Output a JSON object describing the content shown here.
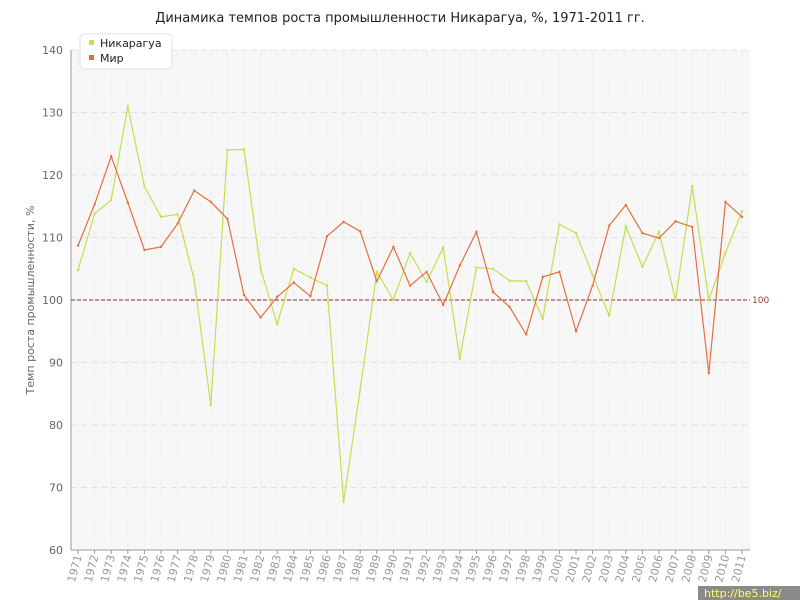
{
  "chart_data": {
    "type": "line",
    "title": "Динамика темпов роста промышленности Никарагуа, %, 1971-2011 гг.",
    "xlabel": "",
    "ylabel": "Темп роста промышленности, %",
    "ylim": [
      60,
      140
    ],
    "yticks": [
      60,
      70,
      80,
      90,
      100,
      110,
      120,
      130,
      140
    ],
    "x": [
      "1971",
      "1972",
      "1973",
      "1974",
      "1975",
      "1976",
      "1977",
      "1978",
      "1979",
      "1980",
      "1981",
      "1982",
      "1983",
      "1984",
      "1985",
      "1986",
      "1987",
      "1988",
      "1989",
      "1990",
      "1991",
      "1992",
      "1993",
      "1994",
      "1995",
      "1996",
      "1997",
      "1998",
      "1999",
      "2000",
      "2001",
      "2002",
      "2003",
      "2004",
      "2005",
      "2006",
      "2007",
      "2008",
      "2009",
      "2010",
      "2011"
    ],
    "series": [
      {
        "name": "Никарагуа",
        "color": "#c3df4f",
        "values": [
          104.8,
          113.8,
          116.0,
          131.0,
          118.2,
          113.3,
          113.7,
          103.2,
          83.2,
          124.0,
          124.1,
          105.0,
          96.2,
          105.0,
          103.6,
          102.3,
          67.7,
          85.7,
          104.5,
          100.0,
          107.5,
          102.9,
          108.4,
          90.6,
          105.2,
          105.0,
          103.1,
          103.0,
          97.0,
          112.1,
          110.7,
          104.0,
          97.5,
          111.8,
          105.3,
          110.9,
          100.0,
          118.2,
          100.0,
          107.5,
          114.2
        ]
      },
      {
        "name": "Мир",
        "color": "#e2703f",
        "values": [
          108.7,
          115.3,
          123.0,
          115.6,
          108.0,
          108.5,
          112.2,
          117.5,
          115.7,
          113.0,
          100.8,
          97.2,
          100.5,
          102.8,
          100.6,
          110.2,
          112.5,
          111.0,
          103.0,
          108.5,
          102.3,
          104.5,
          99.2,
          105.5,
          110.9,
          101.3,
          98.9,
          94.5,
          103.7,
          104.5,
          95.0,
          102.3,
          111.9,
          115.2,
          110.7,
          109.9,
          112.6,
          111.7,
          88.3,
          115.7,
          113.3
        ]
      }
    ],
    "reference_line": {
      "value": 100,
      "label": "100",
      "color": "#8c2a2a"
    },
    "grid": true,
    "legend": "top-left"
  },
  "watermark": "http://be5.biz/"
}
